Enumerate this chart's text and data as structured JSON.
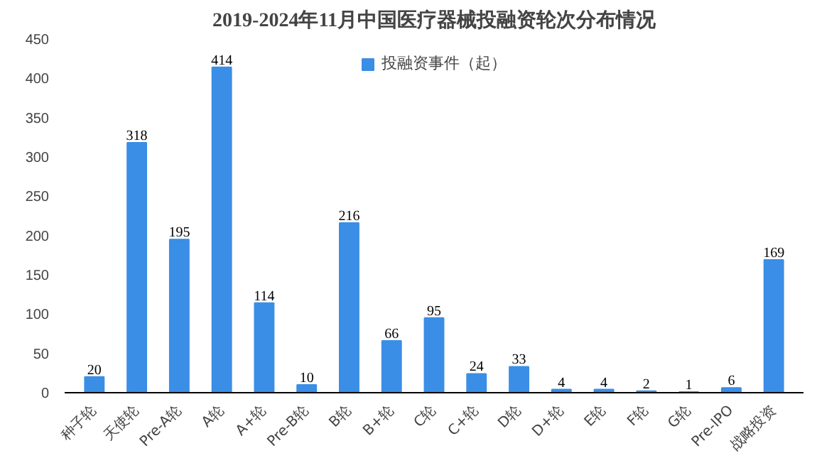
{
  "chart_data": {
    "type": "bar",
    "title": "2019-2024年11月中国医疗器械投融资轮次分布情况",
    "categories": [
      "种子轮",
      "天使轮",
      "Pre-A轮",
      "A轮",
      "A+轮",
      "Pre-B轮",
      "B轮",
      "B+轮",
      "C轮",
      "C+轮",
      "D轮",
      "D+轮",
      "E轮",
      "F轮",
      "G轮",
      "Pre-IPO",
      "战略投资"
    ],
    "series": [
      {
        "name": "投融资事件（起）",
        "color": "#3a8ee6",
        "values": [
          20,
          318,
          195,
          414,
          114,
          10,
          216,
          66,
          95,
          24,
          33,
          4,
          4,
          2,
          1,
          6,
          169
        ]
      }
    ],
    "ylim": [
      0,
      450
    ],
    "yticks": [
      0,
      50,
      100,
      150,
      200,
      250,
      300,
      350,
      400,
      450
    ],
    "data_labels": true,
    "legend": "top",
    "grid": false
  }
}
